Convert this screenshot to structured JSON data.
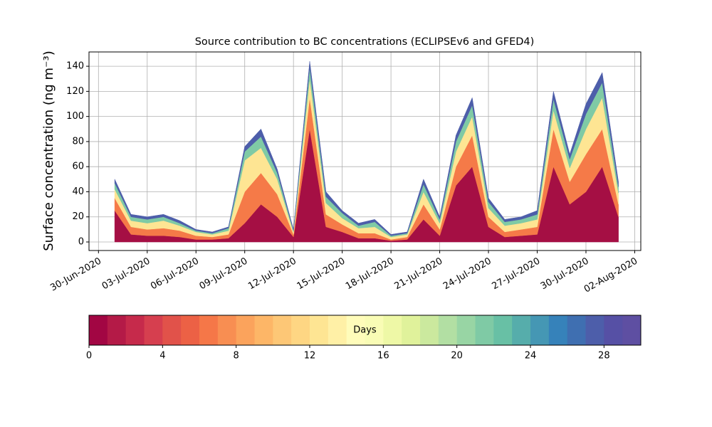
{
  "chart_data": {
    "type": "stacked_area",
    "title": "Source contribution to BC concentrations (ECLIPSEv6 and GFED4)",
    "y_label": "Surface concentration (ng m⁻³)",
    "x": [
      "2020-07-01",
      "2020-07-02",
      "2020-07-03",
      "2020-07-04",
      "2020-07-05",
      "2020-07-06",
      "2020-07-07",
      "2020-07-08",
      "2020-07-09",
      "2020-07-10",
      "2020-07-11",
      "2020-07-12",
      "2020-07-13",
      "2020-07-14",
      "2020-07-15",
      "2020-07-16",
      "2020-07-17",
      "2020-07-18",
      "2020-07-19",
      "2020-07-20",
      "2020-07-21",
      "2020-07-22",
      "2020-07-23",
      "2020-07-24",
      "2020-07-25",
      "2020-07-26",
      "2020-07-27",
      "2020-07-28",
      "2020-07-29",
      "2020-07-30",
      "2020-07-31",
      "2020-08-01"
    ],
    "series": [
      {
        "color": "#a50f44",
        "values": [
          25,
          6,
          5,
          5,
          4,
          2,
          2,
          3,
          15,
          30,
          20,
          4,
          90,
          12,
          8,
          3,
          3,
          1,
          2,
          18,
          5,
          45,
          60,
          12,
          4,
          5,
          6,
          60,
          30,
          40,
          60,
          20
        ]
      },
      {
        "color": "#f57a48",
        "values": [
          10,
          6,
          5,
          6,
          5,
          3,
          2,
          3,
          25,
          25,
          18,
          2,
          25,
          10,
          6,
          4,
          4,
          1,
          2,
          12,
          5,
          15,
          25,
          8,
          4,
          5,
          6,
          30,
          18,
          30,
          30,
          10
        ]
      },
      {
        "color": "#fee593",
        "values": [
          7,
          5,
          5,
          6,
          4,
          3,
          2,
          3,
          25,
          20,
          12,
          2,
          15,
          9,
          5,
          4,
          5,
          2,
          2,
          10,
          5,
          12,
          15,
          7,
          5,
          5,
          6,
          15,
          11,
          20,
          25,
          9
        ]
      },
      {
        "color": "#7fcaa5",
        "values": [
          5,
          3,
          3,
          3,
          2,
          1,
          1,
          2,
          7,
          9,
          5,
          1,
          9,
          5,
          4,
          2,
          4,
          1,
          1,
          6,
          3,
          8,
          9,
          5,
          3,
          3,
          4,
          9,
          7,
          12,
          12,
          5
        ]
      },
      {
        "color": "#4d5eaa",
        "values": [
          3,
          2,
          2,
          2,
          2,
          1,
          1,
          1,
          4,
          6,
          3,
          1,
          5,
          4,
          2,
          2,
          2,
          1,
          1,
          4,
          2,
          5,
          6,
          3,
          2,
          2,
          3,
          6,
          4,
          8,
          8,
          4
        ]
      }
    ],
    "xlim": [
      "2020-06-29T10:00Z",
      "2020-08-02T09:00Z"
    ],
    "xticks": [
      {
        "value": "2020-06-30",
        "label": "30-Jun-2020"
      },
      {
        "value": "2020-07-03",
        "label": "03-Jul-2020"
      },
      {
        "value": "2020-07-06",
        "label": "06-Jul-2020"
      },
      {
        "value": "2020-07-09",
        "label": "09-Jul-2020"
      },
      {
        "value": "2020-07-12",
        "label": "12-Jul-2020"
      },
      {
        "value": "2020-07-15",
        "label": "15-Jul-2020"
      },
      {
        "value": "2020-07-18",
        "label": "18-Jul-2020"
      },
      {
        "value": "2020-07-21",
        "label": "21-Jul-2020"
      },
      {
        "value": "2020-07-24",
        "label": "24-Jul-2020"
      },
      {
        "value": "2020-07-27",
        "label": "27-Jul-2020"
      },
      {
        "value": "2020-07-30",
        "label": "30-Jul-2020"
      },
      {
        "value": "2020-08-02",
        "label": "02-Aug-2020"
      }
    ],
    "ylim": [
      -6.8,
      151.4
    ],
    "yticks": [
      0,
      20,
      40,
      60,
      80,
      100,
      120,
      140
    ],
    "grid": true,
    "colorbar": {
      "label": "Days",
      "lim": [
        0,
        30
      ],
      "ticks": [
        0,
        4,
        8,
        12,
        16,
        20,
        24,
        28
      ],
      "colors": [
        "#a20643",
        "#b41a47",
        "#c62a4b",
        "#d63f4f",
        "#e1524a",
        "#ec6145",
        "#f57748",
        "#f88e52",
        "#fba35c",
        "#fdb667",
        "#fdc776",
        "#fed683",
        "#fee593",
        "#fff0a6",
        "#fffcba",
        "#f9fcb5",
        "#eef8a6",
        "#e0f29b",
        "#cbe99e",
        "#b2dfa3",
        "#98d5a4",
        "#7fcaa5",
        "#68c0a5",
        "#56adab",
        "#4597b4",
        "#3682ba",
        "#3f6fb1",
        "#4d5eaa",
        "#5650a5",
        "#5e4fa2"
      ]
    }
  }
}
